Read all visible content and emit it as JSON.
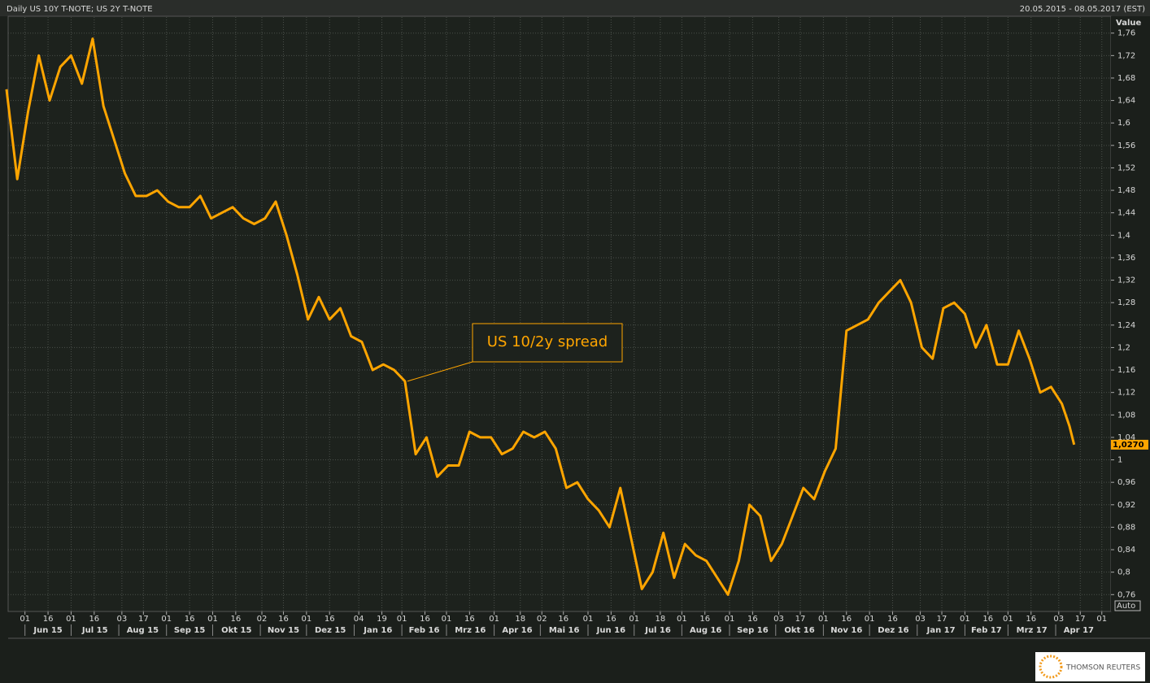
{
  "chart_data": {
    "type": "line",
    "title": "Daily US 10Y T-NOTE; US 2Y T-NOTE",
    "date_range": "20.05.2015 - 08.05.2017 (EST)",
    "y_axis_label": "Value",
    "scale_mode": "Auto",
    "last_value": 1.027,
    "last_value_label": "1,0270",
    "grid": true,
    "x": [
      "2015-05-20",
      "2015-05-27",
      "2015-06-03",
      "2015-06-10",
      "2015-06-17",
      "2015-06-24",
      "2015-07-01",
      "2015-07-08",
      "2015-07-15",
      "2015-07-22",
      "2015-07-29",
      "2015-08-05",
      "2015-08-12",
      "2015-08-19",
      "2015-08-26",
      "2015-09-02",
      "2015-09-09",
      "2015-09-16",
      "2015-09-23",
      "2015-09-30",
      "2015-10-07",
      "2015-10-14",
      "2015-10-21",
      "2015-10-28",
      "2015-11-04",
      "2015-11-11",
      "2015-11-18",
      "2015-11-25",
      "2015-12-02",
      "2015-12-09",
      "2015-12-16",
      "2015-12-23",
      "2015-12-30",
      "2016-01-06",
      "2016-01-13",
      "2016-01-20",
      "2016-01-27",
      "2016-02-03",
      "2016-02-10",
      "2016-02-17",
      "2016-02-24",
      "2016-03-02",
      "2016-03-09",
      "2016-03-16",
      "2016-03-23",
      "2016-03-30",
      "2016-04-06",
      "2016-04-13",
      "2016-04-20",
      "2016-04-27",
      "2016-05-04",
      "2016-05-11",
      "2016-05-18",
      "2016-05-25",
      "2016-06-01",
      "2016-06-08",
      "2016-06-15",
      "2016-06-22",
      "2016-06-29",
      "2016-07-06",
      "2016-07-13",
      "2016-07-20",
      "2016-07-27",
      "2016-08-03",
      "2016-08-10",
      "2016-08-17",
      "2016-08-24",
      "2016-08-31",
      "2016-09-07",
      "2016-09-14",
      "2016-09-21",
      "2016-09-28",
      "2016-10-05",
      "2016-10-12",
      "2016-10-19",
      "2016-10-26",
      "2016-11-02",
      "2016-11-09",
      "2016-11-16",
      "2016-11-23",
      "2016-11-30",
      "2016-12-07",
      "2016-12-14",
      "2016-12-21",
      "2016-12-28",
      "2017-01-04",
      "2017-01-11",
      "2017-01-18",
      "2017-01-25",
      "2017-02-01",
      "2017-02-08",
      "2017-02-15",
      "2017-02-22",
      "2017-03-01",
      "2017-03-08",
      "2017-03-15",
      "2017-03-22",
      "2017-03-29",
      "2017-04-05",
      "2017-04-10",
      "2017-04-13"
    ],
    "series": [
      {
        "name": "US 10/2y spread",
        "color": "#ffa500",
        "values": [
          1.66,
          1.5,
          1.62,
          1.72,
          1.64,
          1.7,
          1.72,
          1.67,
          1.75,
          1.63,
          1.57,
          1.51,
          1.47,
          1.47,
          1.48,
          1.46,
          1.45,
          1.45,
          1.47,
          1.43,
          1.44,
          1.45,
          1.43,
          1.42,
          1.43,
          1.46,
          1.4,
          1.33,
          1.25,
          1.29,
          1.25,
          1.27,
          1.22,
          1.21,
          1.16,
          1.17,
          1.16,
          1.14,
          1.01,
          1.04,
          0.97,
          0.99,
          0.99,
          1.05,
          1.04,
          1.04,
          1.01,
          1.02,
          1.05,
          1.04,
          1.05,
          1.02,
          0.95,
          0.96,
          0.93,
          0.91,
          0.88,
          0.95,
          0.86,
          0.77,
          0.8,
          0.87,
          0.79,
          0.85,
          0.83,
          0.82,
          0.79,
          0.76,
          0.82,
          0.92,
          0.9,
          0.82,
          0.85,
          0.9,
          0.95,
          0.93,
          0.98,
          1.02,
          1.23,
          1.24,
          1.25,
          1.28,
          1.3,
          1.32,
          1.28,
          1.2,
          1.18,
          1.27,
          1.28,
          1.26,
          1.2,
          1.24,
          1.17,
          1.17,
          1.23,
          1.18,
          1.12,
          1.13,
          1.1,
          1.06,
          1.027
        ]
      }
    ],
    "xlim": [
      "2015-05-20",
      "2017-05-08"
    ],
    "ylim": [
      0.73,
      1.79
    ],
    "yticks": [
      {
        "value": 0.76,
        "label": "0,76"
      },
      {
        "value": 0.8,
        "label": "0,8"
      },
      {
        "value": 0.84,
        "label": "0,84"
      },
      {
        "value": 0.88,
        "label": "0,88"
      },
      {
        "value": 0.92,
        "label": "0,92"
      },
      {
        "value": 0.96,
        "label": "0,96"
      },
      1,
      {
        "value": 1.04,
        "label": "1,04"
      },
      {
        "value": 1.08,
        "label": "1,08"
      },
      {
        "value": 1.12,
        "label": "1,12"
      },
      {
        "value": 1.16,
        "label": "1,16"
      },
      {
        "value": 1.2,
        "label": "1,2"
      },
      {
        "value": 1.24,
        "label": "1,24"
      },
      {
        "value": 1.28,
        "label": "1,28"
      },
      {
        "value": 1.32,
        "label": "1,32"
      },
      {
        "value": 1.36,
        "label": "1,36"
      },
      {
        "value": 1.4,
        "label": "1,4"
      },
      {
        "value": 1.44,
        "label": "1,44"
      },
      {
        "value": 1.48,
        "label": "1,48"
      },
      {
        "value": 1.52,
        "label": "1,52"
      },
      {
        "value": 1.56,
        "label": "1,56"
      },
      {
        "value": 1.6,
        "label": "1,6"
      },
      {
        "value": 1.64,
        "label": "1,64"
      },
      {
        "value": 1.68,
        "label": "1,68"
      },
      {
        "value": 1.72,
        "label": "1,72"
      },
      {
        "value": 1.76,
        "label": "1,76"
      }
    ],
    "xticks": [
      {
        "value": "2015-06-01",
        "label": "01"
      },
      {
        "value": "2015-06-16",
        "label": "16"
      },
      {
        "value": "2015-07-01",
        "label": "01"
      },
      {
        "value": "2015-07-16",
        "label": "16"
      },
      {
        "value": "2015-08-03",
        "label": "03"
      },
      {
        "value": "2015-08-17",
        "label": "17"
      },
      {
        "value": "2015-09-01",
        "label": "01"
      },
      {
        "value": "2015-09-16",
        "label": "16"
      },
      {
        "value": "2015-10-01",
        "label": "01"
      },
      {
        "value": "2015-10-16",
        "label": "16"
      },
      {
        "value": "2015-11-02",
        "label": "02"
      },
      {
        "value": "2015-11-16",
        "label": "16"
      },
      {
        "value": "2015-12-01",
        "label": "01"
      },
      {
        "value": "2015-12-16",
        "label": "16"
      },
      {
        "value": "2016-01-04",
        "label": "04"
      },
      {
        "value": "2016-01-19",
        "label": "19"
      },
      {
        "value": "2016-02-01",
        "label": "01"
      },
      {
        "value": "2016-02-16",
        "label": "16"
      },
      {
        "value": "2016-03-01",
        "label": "01"
      },
      {
        "value": "2016-03-16",
        "label": "16"
      },
      {
        "value": "2016-04-01",
        "label": "01"
      },
      {
        "value": "2016-04-18",
        "label": "18"
      },
      {
        "value": "2016-05-02",
        "label": "02"
      },
      {
        "value": "2016-05-16",
        "label": "16"
      },
      {
        "value": "2016-06-01",
        "label": "01"
      },
      {
        "value": "2016-06-16",
        "label": "16"
      },
      {
        "value": "2016-07-01",
        "label": "01"
      },
      {
        "value": "2016-07-18",
        "label": "18"
      },
      {
        "value": "2016-08-01",
        "label": "01"
      },
      {
        "value": "2016-08-16",
        "label": "16"
      },
      {
        "value": "2016-09-01",
        "label": "01"
      },
      {
        "value": "2016-09-16",
        "label": "16"
      },
      {
        "value": "2016-10-03",
        "label": "03"
      },
      {
        "value": "2016-10-17",
        "label": "17"
      },
      {
        "value": "2016-11-01",
        "label": "01"
      },
      {
        "value": "2016-11-16",
        "label": "16"
      },
      {
        "value": "2016-12-01",
        "label": "01"
      },
      {
        "value": "2016-12-16",
        "label": "16"
      },
      {
        "value": "2017-01-03",
        "label": "03"
      },
      {
        "value": "2017-01-17",
        "label": "17"
      },
      {
        "value": "2017-02-01",
        "label": "01"
      },
      {
        "value": "2017-02-16",
        "label": "16"
      },
      {
        "value": "2017-03-01",
        "label": "01"
      },
      {
        "value": "2017-03-16",
        "label": "16"
      },
      {
        "value": "2017-04-03",
        "label": "03"
      },
      {
        "value": "2017-04-17",
        "label": "17"
      },
      {
        "value": "2017-05-01",
        "label": "01"
      }
    ],
    "month_labels": [
      {
        "value": "2015-06",
        "label": "Jun 15"
      },
      {
        "value": "2015-07",
        "label": "Jul 15"
      },
      {
        "value": "2015-08",
        "label": "Aug 15"
      },
      {
        "value": "2015-09",
        "label": "Sep 15"
      },
      {
        "value": "2015-10",
        "label": "Okt 15"
      },
      {
        "value": "2015-11",
        "label": "Nov 15"
      },
      {
        "value": "2015-12",
        "label": "Dez 15"
      },
      {
        "value": "2016-01",
        "label": "Jan 16"
      },
      {
        "value": "2016-02",
        "label": "Feb 16"
      },
      {
        "value": "2016-03",
        "label": "Mrz 16"
      },
      {
        "value": "2016-04",
        "label": "Apr 16"
      },
      {
        "value": "2016-05",
        "label": "Mai 16"
      },
      {
        "value": "2016-06",
        "label": "Jun 16"
      },
      {
        "value": "2016-07",
        "label": "Jul 16"
      },
      {
        "value": "2016-08",
        "label": "Aug 16"
      },
      {
        "value": "2016-09",
        "label": "Sep 16"
      },
      {
        "value": "2016-10",
        "label": "Okt 16"
      },
      {
        "value": "2016-11",
        "label": "Nov 16"
      },
      {
        "value": "2016-12",
        "label": "Dez 16"
      },
      {
        "value": "2017-01",
        "label": "Jan 17"
      },
      {
        "value": "2017-02",
        "label": "Feb 17"
      },
      {
        "value": "2017-03",
        "label": "Mrz 17"
      },
      {
        "value": "2017-04",
        "label": "Apr 17"
      }
    ]
  },
  "footer": {
    "logo": "THOMSON REUTERS"
  }
}
